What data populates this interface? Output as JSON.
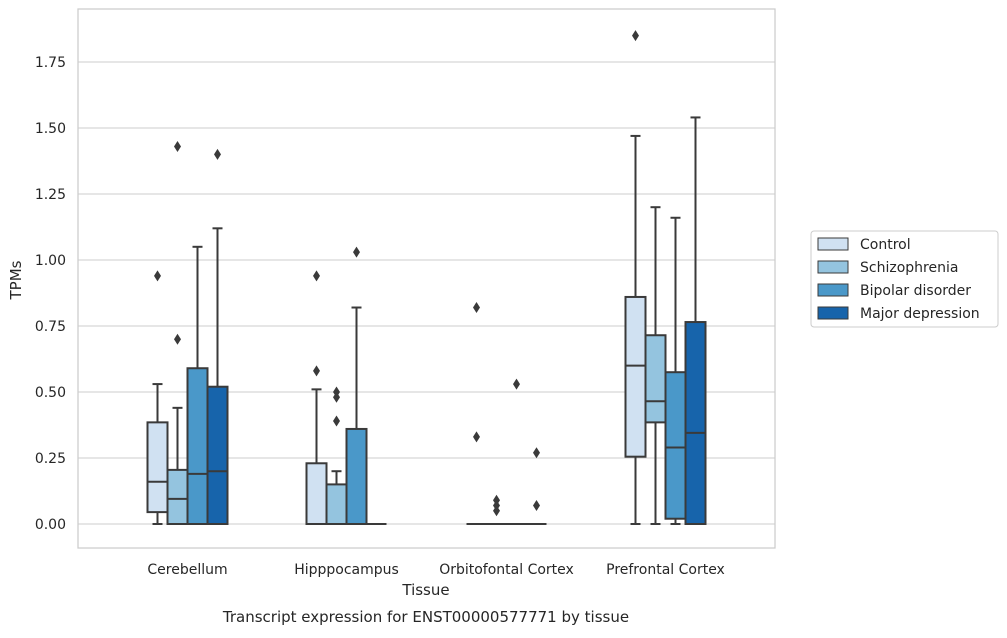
{
  "chart_data": {
    "type": "boxplot",
    "caption": "Transcript expression for ENST00000577771 by tissue",
    "xlabel": "Tissue",
    "ylabel": "TPMs",
    "ylim": [
      -0.09,
      1.95
    ],
    "yticks": [
      "0.00",
      "0.25",
      "0.50",
      "0.75",
      "1.00",
      "1.25",
      "1.50",
      "1.75"
    ],
    "ytick_values": [
      0,
      0.25,
      0.5,
      0.75,
      1.0,
      1.25,
      1.5,
      1.75
    ],
    "grid": true,
    "legend_position": "right",
    "categories": [
      "Cerebellum",
      "Hipppocampus",
      "Orbitofontal Cortex",
      "Prefrontal Cortex"
    ],
    "series": [
      {
        "name": "Control",
        "color": "#d0e1f2",
        "boxes": [
          {
            "whislo": 0.0,
            "q1": 0.045,
            "med": 0.16,
            "q3": 0.385,
            "whishi": 0.53,
            "fliers": [
              0.94
            ]
          },
          {
            "whislo": 0.0,
            "q1": 0.0,
            "med": 0.0,
            "q3": 0.23,
            "whishi": 0.51,
            "fliers": [
              0.58,
              0.94
            ]
          },
          {
            "whislo": 0.0,
            "q1": 0.0,
            "med": 0.0,
            "q3": 0.0,
            "whishi": 0.0,
            "fliers": [
              0.33,
              0.82
            ]
          },
          {
            "whislo": 0.0,
            "q1": 0.255,
            "med": 0.6,
            "q3": 0.86,
            "whishi": 1.47,
            "fliers": [
              1.85
            ]
          }
        ]
      },
      {
        "name": "Schizophrenia",
        "color": "#94c4df",
        "boxes": [
          {
            "whislo": 0.0,
            "q1": 0.0,
            "med": 0.095,
            "q3": 0.205,
            "whishi": 0.44,
            "fliers": [
              0.7,
              1.43
            ]
          },
          {
            "whislo": 0.0,
            "q1": 0.0,
            "med": 0.0,
            "q3": 0.15,
            "whishi": 0.2,
            "fliers": [
              0.39,
              0.48,
              0.5
            ]
          },
          {
            "whislo": 0.0,
            "q1": 0.0,
            "med": 0.0,
            "q3": 0.0,
            "whishi": 0.0,
            "fliers": [
              0.05,
              0.07,
              0.09
            ]
          },
          {
            "whislo": 0.0,
            "q1": 0.385,
            "med": 0.465,
            "q3": 0.715,
            "whishi": 1.2,
            "fliers": []
          }
        ]
      },
      {
        "name": "Bipolar disorder",
        "color": "#4a98c9",
        "boxes": [
          {
            "whislo": 0.0,
            "q1": 0.0,
            "med": 0.19,
            "q3": 0.59,
            "whishi": 1.05,
            "fliers": []
          },
          {
            "whislo": 0.0,
            "q1": 0.0,
            "med": 0.0,
            "q3": 0.36,
            "whishi": 0.82,
            "fliers": [
              1.03
            ]
          },
          {
            "whislo": 0.0,
            "q1": 0.0,
            "med": 0.0,
            "q3": 0.0,
            "whishi": 0.0,
            "fliers": [
              0.53
            ]
          },
          {
            "whislo": 0.0,
            "q1": 0.02,
            "med": 0.29,
            "q3": 0.575,
            "whishi": 1.16,
            "fliers": []
          }
        ]
      },
      {
        "name": "Major depression",
        "color": "#1764ab",
        "boxes": [
          {
            "whislo": 0.0,
            "q1": 0.0,
            "med": 0.2,
            "q3": 0.52,
            "whishi": 1.12,
            "fliers": [
              1.4
            ]
          },
          {
            "whislo": 0.0,
            "q1": 0.0,
            "med": 0.0,
            "q3": 0.0,
            "whishi": 0.0,
            "fliers": []
          },
          {
            "whislo": 0.0,
            "q1": 0.0,
            "med": 0.0,
            "q3": 0.0,
            "whishi": 0.0,
            "fliers": [
              0.07,
              0.27
            ]
          },
          {
            "whislo": 0.0,
            "q1": 0.0,
            "med": 0.345,
            "q3": 0.765,
            "whishi": 1.54,
            "fliers": []
          }
        ]
      }
    ]
  }
}
